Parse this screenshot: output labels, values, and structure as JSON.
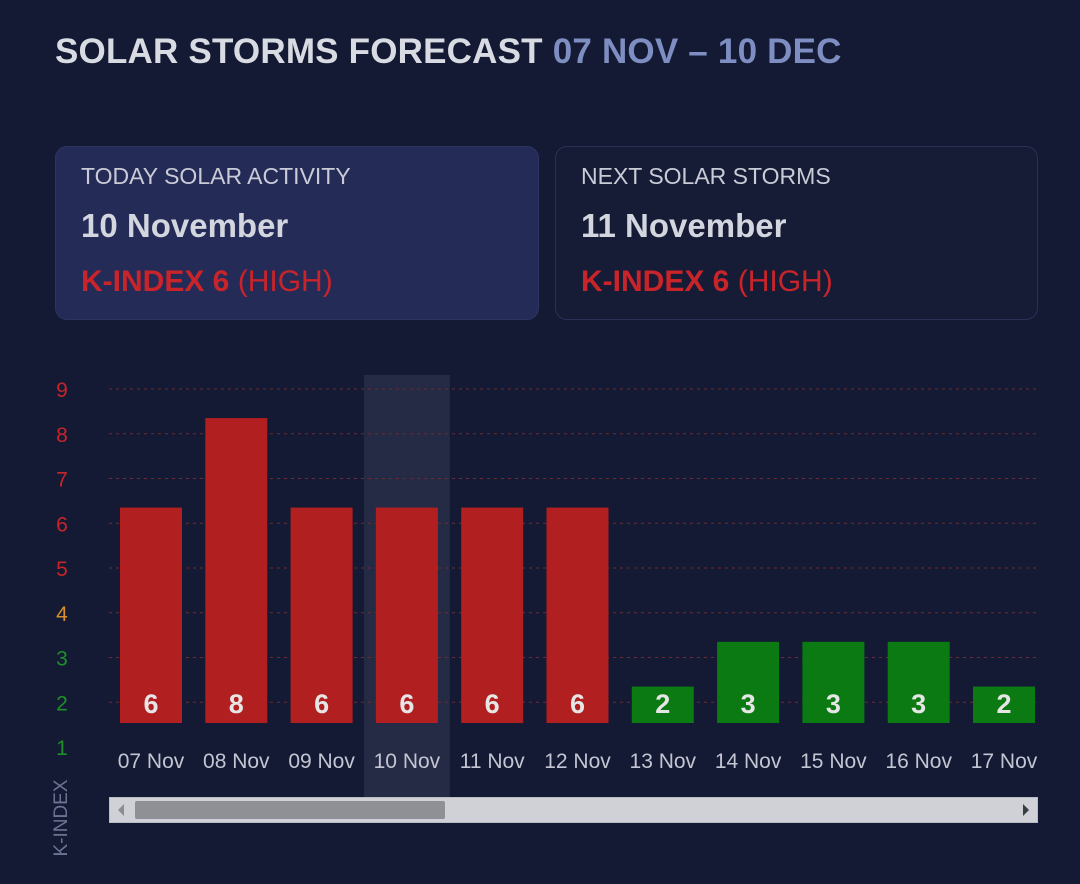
{
  "title": {
    "main": "SOLAR STORMS FORECAST",
    "range": "07 NOV – 10 DEC"
  },
  "cards": {
    "today": {
      "label": "TODAY SOLAR ACTIVITY",
      "date": "10 November",
      "kindex": "K-INDEX 6",
      "level": "(HIGH)"
    },
    "next": {
      "label": "NEXT SOLAR STORMS",
      "date": "11 November",
      "kindex": "K-INDEX 6",
      "level": "(HIGH)"
    }
  },
  "colors": {
    "high": "#b21f20",
    "low": "#0b7a12",
    "accent": "#c8242a",
    "highlight_column": "#262b45",
    "tick_red": "#c8242a",
    "tick_orange": "#d7902a",
    "tick_green": "#1f8f2a",
    "grid": "#6e2a2e"
  },
  "chart_data": {
    "type": "bar",
    "categories": [
      "07 Nov",
      "08 Nov",
      "09 Nov",
      "10 Nov",
      "11 Nov",
      "12 Nov",
      "13 Nov",
      "14 Nov",
      "15 Nov",
      "16 Nov",
      "17 Nov"
    ],
    "values": [
      6,
      8,
      6,
      6,
      6,
      6,
      2,
      3,
      3,
      3,
      2
    ],
    "ylabel": "K-INDEX",
    "yticks": [
      1,
      2,
      3,
      4,
      5,
      6,
      7,
      8,
      9
    ],
    "ylim": [
      1,
      9
    ],
    "highlighted_category": "10 Nov",
    "grid": true,
    "data_labels": true
  }
}
